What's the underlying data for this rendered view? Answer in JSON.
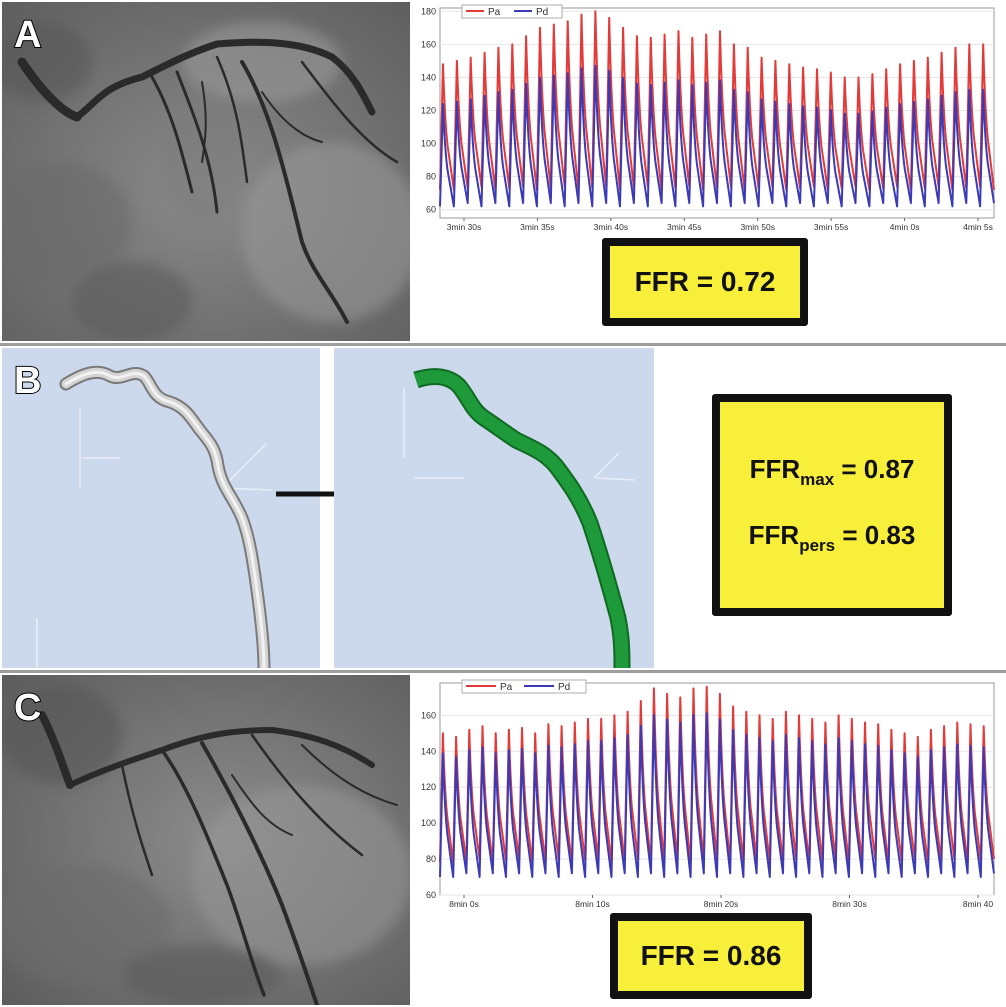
{
  "panel_a": {
    "letter": "A",
    "legend": {
      "pa": "Pa",
      "pd": "Pd"
    },
    "yticks": [
      60,
      80,
      100,
      120,
      140,
      160,
      180
    ],
    "xticks": [
      "3min 30s",
      "3min 35s",
      "3min 40s",
      "3min 45s",
      "3min 50s",
      "3min 55s",
      "4min 0s",
      "4min 5s"
    ],
    "ffr": "FFR = 0.72"
  },
  "panel_b": {
    "letter": "B",
    "ffr_max_base": "FFR",
    "ffr_max_sub": "max",
    "ffr_max_value": " = 0.87",
    "ffr_pers_base": "FFR",
    "ffr_pers_sub": "pers",
    "ffr_pers_value": " = 0.83"
  },
  "panel_c": {
    "letter": "C",
    "legend": {
      "pa": "Pa",
      "pd": "Pd"
    },
    "yticks": [
      60,
      80,
      100,
      120,
      140,
      160
    ],
    "xticks": [
      "8min 0s",
      "8min 10s",
      "8min 20s",
      "8min 30s",
      "8min 40"
    ],
    "ffr": "FFR = 0.86"
  },
  "colors": {
    "pa": "#e33a3a",
    "pd": "#3b3bb8",
    "ffr_box": "#f7ef3a",
    "model_bg": "#ccd9ec",
    "model_result": "#1f9a3a"
  }
}
